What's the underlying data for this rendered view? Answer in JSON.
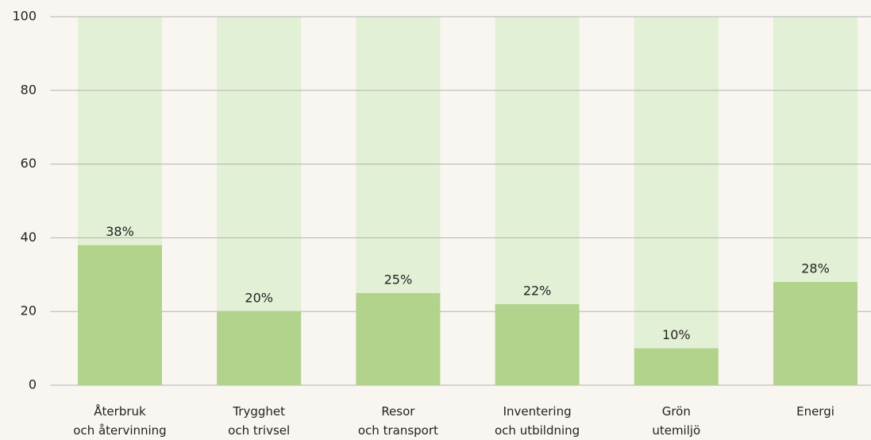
{
  "chart_data": {
    "type": "bar",
    "categories": [
      "Återbruk\noch återvinning",
      "Trygghet\noch trivsel",
      "Resor\noch transport",
      "Inventering\noch utbildning",
      "Grön\nutemiljö",
      "Energi"
    ],
    "values": [
      38,
      20,
      25,
      22,
      10,
      28
    ],
    "value_labels": [
      "38%",
      "20%",
      "25%",
      "22%",
      "10%",
      "28%"
    ],
    "color": "#b1d38b",
    "track_color": "#e2f0d5",
    "ylim": [
      0,
      100
    ],
    "yticks": [
      0,
      20,
      40,
      60,
      80,
      100
    ],
    "grid": true
  }
}
